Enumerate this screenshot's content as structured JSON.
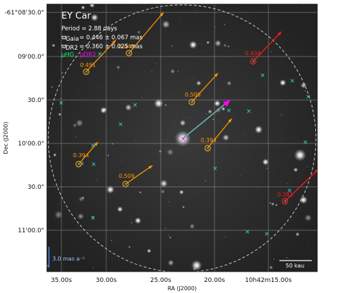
{
  "chart_data": {
    "type": "scatter",
    "title": "EY Car",
    "legend": {
      "period": "Period = 2.88 days",
      "plx_gaia": "ϖ = 0.446 ± 0.067 mas",
      "plx_gaia_sub": "Gaia",
      "plx_gaia_line": "= 0.446 ± 0.067 mas",
      "plx_dr2_sub": "DR2",
      "plx_dr2_line": "= 0.360 ± 0.025 mas",
      "mu_hg": "μHG",
      "mu_dr2": "μDR2"
    },
    "xlabel": "RA (J2000)",
    "ylabel": "Dec (J2000)",
    "x_ticks": [
      "35.00s",
      "30.00s",
      "25.00s",
      "20.00s",
      "10h42m15.00s"
    ],
    "y_ticks": [
      "-61°08'30.0\"",
      "09'00.0\"",
      "30.0\"",
      "10'00.0\"",
      "30.0\"",
      "11'00.0\""
    ],
    "scale_bars": {
      "pm": "3.0 mas a⁻¹",
      "distance": "50 kau"
    },
    "target": {
      "mu_hg_color": "#00ff66",
      "mu_dr2_color": "#ff00ff"
    },
    "companions": [
      {
        "label": "0.491",
        "color": "#ff9900",
        "status": "orange"
      },
      {
        "label": "0.443",
        "color": "#ff9900",
        "status": "orange"
      },
      {
        "label": "0.434",
        "color": "#ff1a1a",
        "status": "red"
      },
      {
        "label": "0.500",
        "color": "#ff9900",
        "status": "orange"
      },
      {
        "label": "0.394",
        "color": "#ff9900",
        "status": "orange"
      },
      {
        "label": "0.394",
        "color": "#ff9900",
        "status": "orange"
      },
      {
        "label": "0.509",
        "color": "#ff9900",
        "status": "orange"
      },
      {
        "label": "0.381",
        "color": "#ff1a1a",
        "status": "red"
      }
    ],
    "field_star_color": "#33dddd",
    "grid": true
  }
}
